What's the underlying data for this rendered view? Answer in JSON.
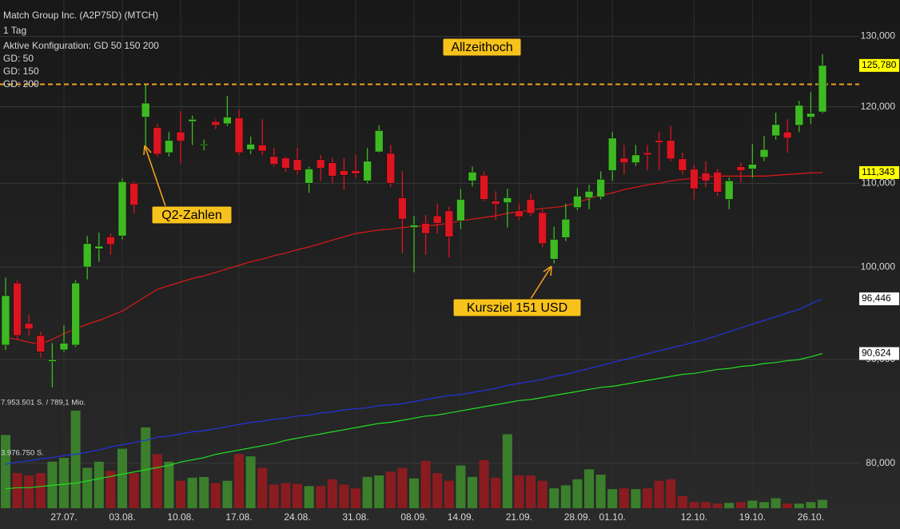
{
  "chart_data": {
    "type": "candlestick",
    "title": "Match Group Inc. (A2P75D) (MTCH)",
    "subtitle": "1 Tag",
    "config_label": "Aktive Konfiguration: GD 50 150 200",
    "log_scale": true,
    "grid": true,
    "ylim": [
      76,
      135.5
    ],
    "yticks": [
      {
        "value": 130,
        "label": "130,000"
      },
      {
        "value": 120,
        "label": "120,000"
      },
      {
        "value": 110,
        "label": "110,000"
      },
      {
        "value": 100,
        "label": "100,000"
      },
      {
        "value": 90,
        "label": "90,000"
      },
      {
        "value": 80,
        "label": "80,000"
      }
    ],
    "categories": [
      null,
      null,
      null,
      null,
      null,
      "27.07.",
      null,
      null,
      null,
      null,
      "03.08.",
      null,
      null,
      null,
      null,
      "10.08.",
      null,
      null,
      null,
      null,
      "17.08.",
      null,
      null,
      null,
      null,
      "24.08.",
      null,
      null,
      null,
      null,
      "31.08.",
      null,
      null,
      null,
      null,
      "08.09.",
      null,
      null,
      null,
      "14.09.",
      null,
      null,
      null,
      null,
      "21.09.",
      null,
      null,
      null,
      null,
      "28.09.",
      null,
      null,
      "01.10.",
      null,
      null,
      null,
      null,
      null,
      null,
      "12.10.",
      null,
      null,
      null,
      null,
      "19.10.",
      null,
      null,
      null,
      null,
      "26.10.",
      null
    ],
    "ohlc": {
      "up_color": "#3dba22",
      "down_color": "#dc1520",
      "label_color": "#ffff00",
      "open": [
        91.5,
        98.2,
        93.8,
        92.5,
        89.8,
        91.0,
        91.5,
        100.0,
        102.1,
        103.5,
        103.6,
        110.0,
        118.6,
        117.2,
        113.9,
        116.6,
        118.0,
        114.9,
        118.0,
        117.7,
        118.5,
        114.3,
        114.9,
        113.4,
        113.2,
        113.0,
        110.0,
        113.0,
        112.6,
        111.6,
        111.6,
        110.3,
        114.0,
        113.8,
        108.2,
        104.6,
        105.1,
        106.0,
        106.6,
        105.4,
        110.3,
        111.0,
        107.8,
        107.6,
        106.6,
        108.0,
        106.4,
        100.9,
        103.4,
        107.0,
        108.2,
        108.3,
        111.6,
        113.2,
        112.6,
        113.9,
        115.5,
        115.5,
        113.1,
        111.8,
        111.3,
        111.4,
        108.0,
        112.1,
        111.8,
        113.3,
        116.1,
        116.6,
        117.5,
        118.6,
        119.3
      ],
      "high": [
        98.8,
        98.5,
        94.7,
        92.9,
        91.7,
        93.6,
        98.5,
        103.6,
        104.0,
        103.9,
        110.6,
        110.2,
        123.0,
        117.7,
        116.6,
        119.4,
        118.8,
        115.6,
        118.3,
        121.5,
        119.6,
        116.0,
        118.3,
        114.5,
        113.4,
        114.5,
        112.1,
        113.6,
        113.2,
        113.2,
        113.6,
        114.5,
        117.5,
        114.9,
        111.5,
        106.0,
        106.1,
        107.5,
        107.1,
        109.3,
        112.1,
        111.5,
        109.0,
        109.3,
        107.5,
        108.7,
        106.8,
        104.7,
        107.5,
        109.4,
        109.8,
        111.5,
        116.6,
        114.9,
        114.9,
        114.9,
        116.6,
        117.4,
        113.9,
        112.3,
        112.8,
        111.8,
        110.7,
        112.6,
        115.0,
        116.1,
        119.2,
        118.3,
        120.8,
        122.0,
        127.4
      ],
      "low": [
        91.0,
        92.1,
        92.5,
        90.2,
        87.2,
        90.8,
        91.3,
        98.6,
        100.6,
        101.4,
        103.2,
        106.3,
        114.3,
        113.4,
        113.4,
        112.5,
        114.9,
        114.2,
        117.0,
        117.4,
        113.6,
        113.7,
        113.6,
        112.1,
        111.4,
        111.1,
        108.8,
        110.3,
        110.0,
        109.2,
        110.7,
        110.0,
        113.9,
        109.5,
        101.6,
        99.4,
        101.4,
        103.9,
        101.1,
        104.4,
        109.6,
        107.8,
        105.5,
        104.6,
        105.5,
        105.9,
        102.3,
        100.4,
        103.0,
        106.7,
        106.8,
        108.0,
        110.3,
        111.1,
        112.2,
        111.6,
        111.6,
        112.8,
        111.1,
        108.0,
        109.5,
        108.4,
        106.8,
        110.1,
        110.7,
        112.8,
        115.6,
        113.9,
        116.6,
        117.7,
        119.1
      ],
      "close": [
        96.8,
        92.5,
        93.2,
        90.8,
        90.0,
        91.7,
        98.2,
        102.7,
        102.4,
        102.6,
        110.2,
        107.3,
        120.5,
        113.7,
        115.5,
        115.4,
        118.3,
        115.0,
        117.5,
        118.6,
        113.9,
        115.0,
        114.1,
        112.4,
        111.9,
        111.6,
        111.8,
        111.9,
        110.9,
        111.0,
        111.2,
        112.8,
        116.8,
        110.0,
        105.6,
        104.9,
        103.9,
        105.1,
        103.5,
        108.0,
        111.4,
        108.0,
        107.4,
        108.2,
        105.9,
        106.3,
        102.7,
        103.2,
        105.6,
        108.4,
        109.0,
        110.5,
        115.8,
        112.6,
        113.6,
        113.6,
        115.2,
        113.1,
        111.6,
        109.3,
        110.3,
        108.9,
        110.3,
        111.6,
        112.4,
        114.3,
        117.6,
        115.8,
        120.2,
        119.1,
        125.78
      ],
      "value_labels": [
        null,
        null,
        null,
        null,
        null,
        null,
        null,
        null,
        null,
        null,
        null,
        null,
        null,
        null,
        null,
        null,
        null,
        null,
        null,
        null,
        null,
        null,
        null,
        null,
        null,
        null,
        null,
        null,
        null,
        null,
        null,
        null,
        null,
        null,
        null,
        null,
        null,
        null,
        null,
        null,
        null,
        null,
        null,
        null,
        null,
        null,
        null,
        null,
        null,
        null,
        null,
        null,
        null,
        null,
        null,
        null,
        null,
        null,
        null,
        null,
        null,
        null,
        null,
        null,
        null,
        null,
        null,
        null,
        null,
        null,
        "125,780"
      ]
    },
    "series": [
      {
        "name": "GD: 50",
        "color": "#e01818",
        "label_color": "#ffff00",
        "values": [
          92.3,
          92.1,
          91.8,
          91.6,
          92.1,
          92.7,
          93.2,
          93.7,
          94.1,
          94.6,
          95.1,
          95.9,
          96.7,
          97.5,
          97.9,
          98.3,
          98.7,
          99.0,
          99.4,
          99.8,
          100.2,
          100.6,
          100.9,
          101.3,
          101.6,
          102.0,
          102.3,
          102.7,
          103.1,
          103.5,
          103.9,
          104.1,
          104.3,
          104.4,
          104.6,
          104.7,
          104.8,
          104.9,
          105.1,
          105.4,
          105.6,
          105.8,
          106.0,
          106.3,
          106.5,
          106.7,
          106.9,
          107.0,
          107.2,
          107.6,
          108.1,
          108.5,
          108.8,
          109.2,
          109.5,
          109.8,
          110.0,
          110.3,
          110.5,
          110.6,
          110.8,
          110.9,
          110.9,
          110.9,
          110.9,
          110.9,
          111.0,
          111.1,
          111.2,
          111.3,
          111.343
        ],
        "value_labels": [
          null,
          null,
          null,
          null,
          null,
          null,
          null,
          null,
          null,
          null,
          null,
          null,
          null,
          null,
          null,
          null,
          null,
          null,
          null,
          null,
          null,
          null,
          null,
          null,
          null,
          null,
          null,
          null,
          null,
          null,
          null,
          null,
          null,
          null,
          null,
          null,
          null,
          null,
          null,
          null,
          null,
          null,
          null,
          null,
          null,
          null,
          null,
          null,
          null,
          null,
          null,
          null,
          null,
          null,
          null,
          null,
          null,
          null,
          null,
          null,
          null,
          null,
          null,
          null,
          null,
          null,
          null,
          null,
          null,
          null,
          "111,343"
        ]
      },
      {
        "name": "GD: 150",
        "color": "#2233dd",
        "label_color": "#ffffff",
        "values": [
          79.9,
          80.1,
          80.2,
          80.4,
          80.5,
          80.7,
          80.8,
          81.0,
          81.2,
          81.5,
          81.7,
          81.9,
          82.1,
          82.4,
          82.5,
          82.7,
          82.9,
          83.0,
          83.2,
          83.4,
          83.6,
          83.8,
          83.9,
          84.1,
          84.2,
          84.4,
          84.5,
          84.7,
          84.8,
          85.0,
          85.1,
          85.2,
          85.4,
          85.5,
          85.6,
          85.8,
          86.0,
          86.2,
          86.4,
          86.5,
          86.7,
          86.9,
          87.1,
          87.4,
          87.6,
          87.8,
          88.0,
          88.3,
          88.5,
          88.8,
          89.1,
          89.4,
          89.7,
          90.0,
          90.3,
          90.6,
          90.9,
          91.2,
          91.5,
          91.8,
          92.1,
          92.5,
          92.9,
          93.3,
          93.7,
          94.1,
          94.5,
          94.9,
          95.3,
          95.9,
          96.446
        ],
        "value_labels": [
          null,
          null,
          null,
          null,
          null,
          null,
          null,
          null,
          null,
          null,
          null,
          null,
          null,
          null,
          null,
          null,
          null,
          null,
          null,
          null,
          null,
          null,
          null,
          null,
          null,
          null,
          null,
          null,
          null,
          null,
          null,
          null,
          null,
          null,
          null,
          null,
          null,
          null,
          null,
          null,
          null,
          null,
          null,
          null,
          null,
          null,
          null,
          null,
          null,
          null,
          null,
          null,
          null,
          null,
          null,
          null,
          null,
          null,
          null,
          null,
          null,
          null,
          null,
          null,
          null,
          null,
          null,
          null,
          null,
          null,
          "96,446"
        ]
      },
      {
        "name": "GD: 200",
        "color": "#22dd22",
        "label_color": "#ffffff",
        "values": [
          77.7,
          77.8,
          77.8,
          77.9,
          78.0,
          78.1,
          78.2,
          78.4,
          78.6,
          78.8,
          79.0,
          79.2,
          79.4,
          79.6,
          79.8,
          80.1,
          80.3,
          80.5,
          80.8,
          81.0,
          81.2,
          81.4,
          81.6,
          81.8,
          82.1,
          82.3,
          82.5,
          82.7,
          82.9,
          83.1,
          83.3,
          83.5,
          83.7,
          83.8,
          84.0,
          84.2,
          84.4,
          84.5,
          84.7,
          84.9,
          85.1,
          85.3,
          85.5,
          85.7,
          85.9,
          86.0,
          86.2,
          86.4,
          86.6,
          86.8,
          87.0,
          87.2,
          87.3,
          87.5,
          87.7,
          87.9,
          88.1,
          88.3,
          88.5,
          88.6,
          88.8,
          89.0,
          89.1,
          89.3,
          89.4,
          89.6,
          89.7,
          89.9,
          90.0,
          90.3,
          90.624
        ],
        "value_labels": [
          null,
          null,
          null,
          null,
          null,
          null,
          null,
          null,
          null,
          null,
          null,
          null,
          null,
          null,
          null,
          null,
          null,
          null,
          null,
          null,
          null,
          null,
          null,
          null,
          null,
          null,
          null,
          null,
          null,
          null,
          null,
          null,
          null,
          null,
          null,
          null,
          null,
          null,
          null,
          null,
          null,
          null,
          null,
          null,
          null,
          null,
          null,
          null,
          null,
          null,
          null,
          null,
          null,
          null,
          null,
          null,
          null,
          null,
          null,
          null,
          null,
          null,
          null,
          null,
          null,
          null,
          null,
          null,
          null,
          null,
          "90,624"
        ]
      }
    ],
    "volume": {
      "up_color": "#3b7f2c",
      "down_color": "#8a1c20",
      "vlim": [
        0,
        7953501
      ],
      "vticks": [
        {
          "value": 7953501,
          "label": "7.953.501 S. / 789,1 Mio."
        },
        {
          "value": 3976750,
          "label": "3.976.750 S."
        }
      ],
      "values": [
        5784000,
        2772000,
        2591000,
        2772000,
        3675000,
        3977000,
        7713000,
        3193000,
        3675000,
        2952000,
        4700000,
        2772000,
        6387000,
        4278000,
        3675000,
        2169000,
        2410000,
        2470000,
        1988000,
        2169000,
        4278000,
        4097000,
        3193000,
        1868000,
        1988000,
        1928000,
        1747000,
        1747000,
        2290000,
        1868000,
        1567000,
        2470000,
        2591000,
        2892000,
        3193000,
        2350000,
        3736000,
        2772000,
        2169000,
        3374000,
        2470000,
        3796000,
        2410000,
        5845000,
        2591000,
        2591000,
        2169000,
        1567000,
        1808000,
        2290000,
        3073000,
        2651000,
        1506000,
        1567000,
        1506000,
        1567000,
        2169000,
        2290000,
        964000,
        482000,
        482000,
        362000,
        422000,
        482000,
        603000,
        482000,
        783000,
        362000,
        362000,
        482000,
        663000
      ]
    },
    "reference_line": {
      "value": 123.1,
      "color": "#f0a020"
    },
    "annotations": [
      {
        "text": "Allzeithoch"
      },
      {
        "text": "Q2-Zahlen"
      },
      {
        "text": "Kursziel 151 USD"
      }
    ]
  }
}
